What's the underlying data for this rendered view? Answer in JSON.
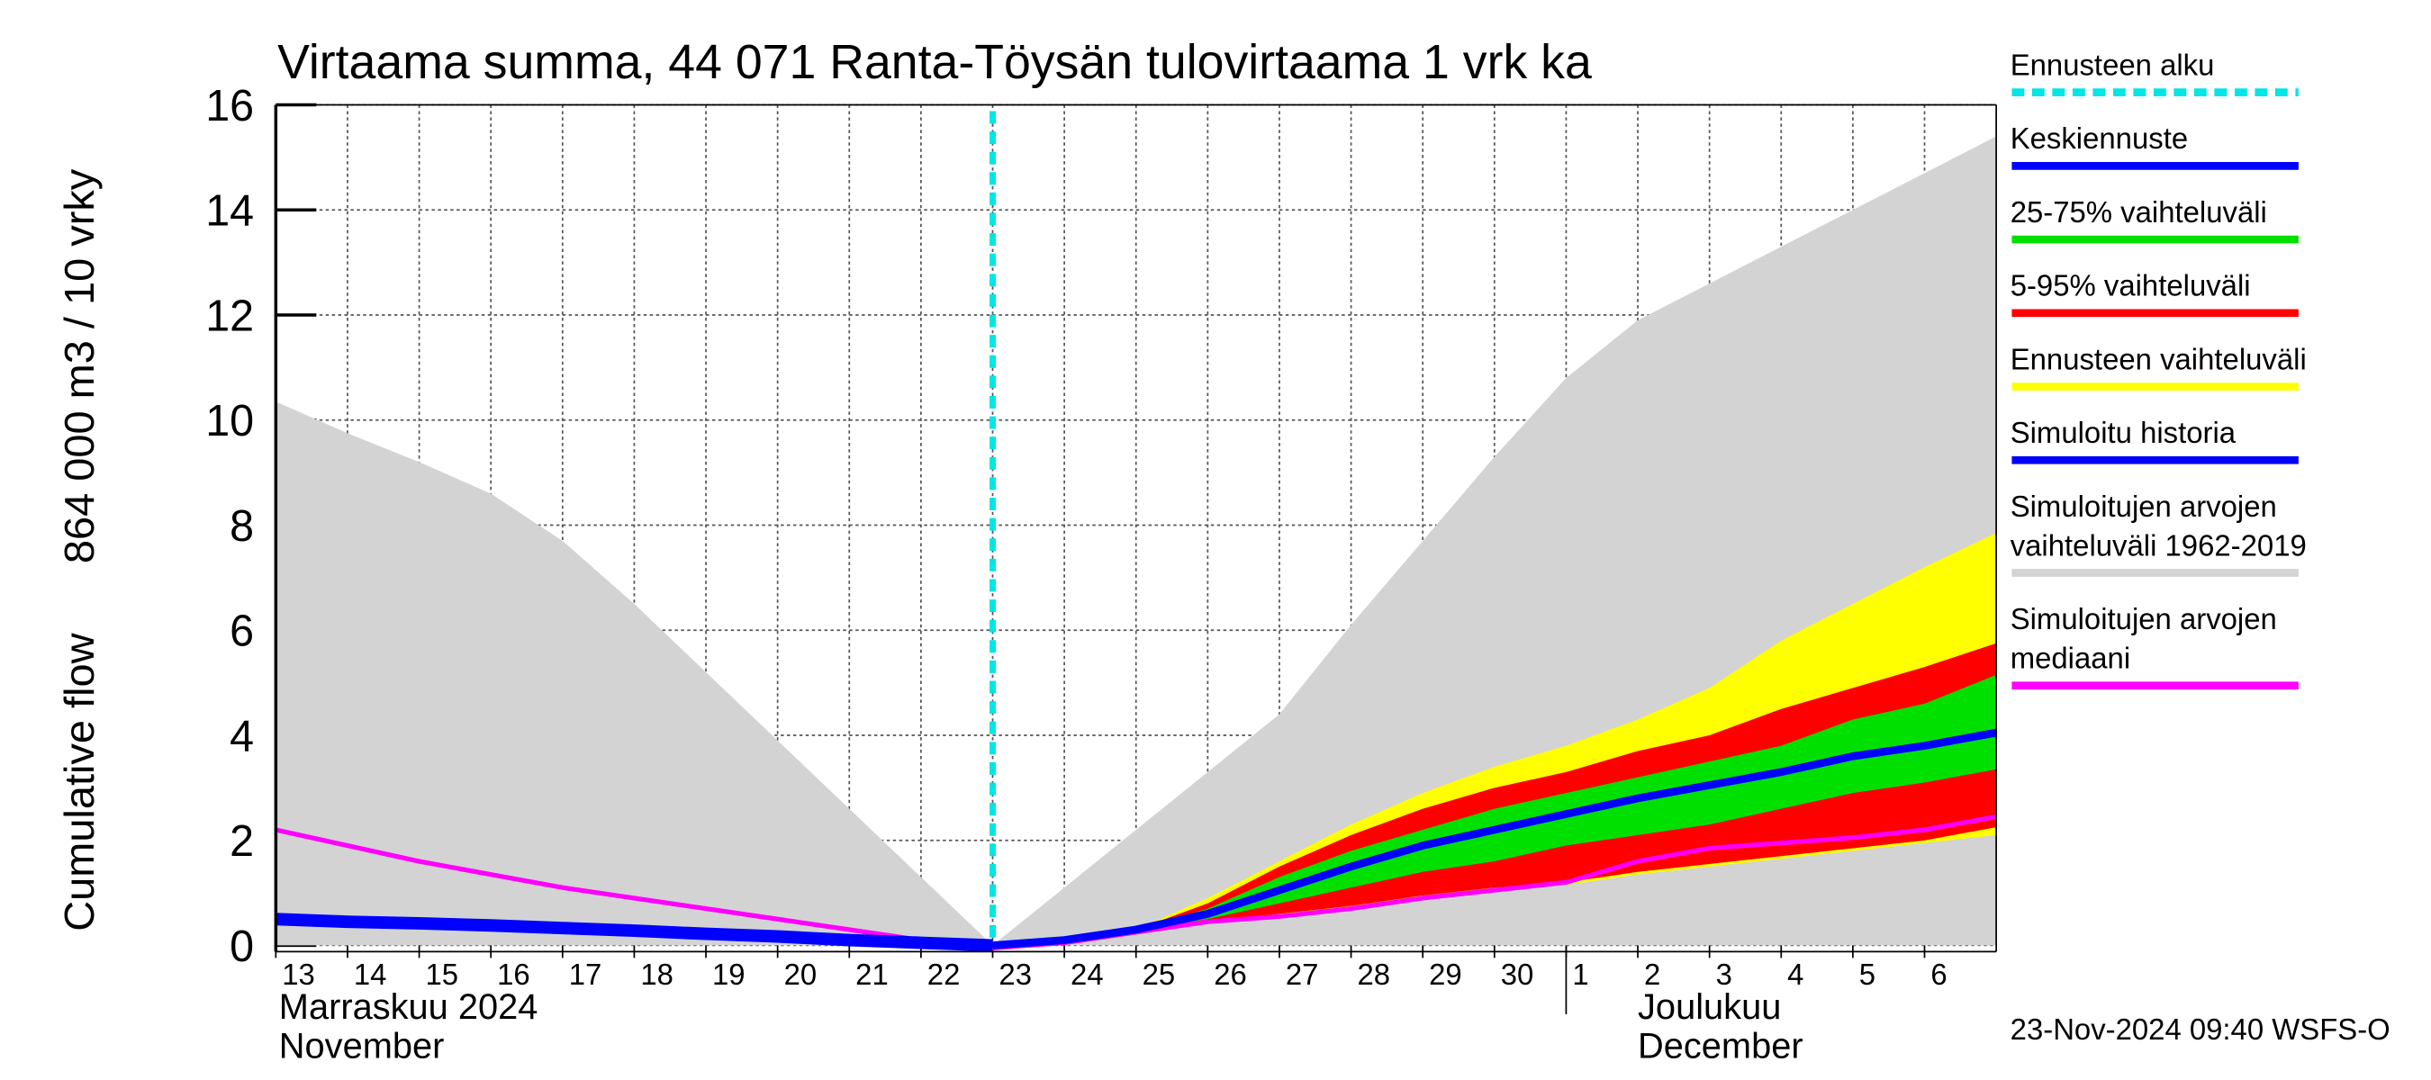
{
  "chart_data": {
    "type": "band-line",
    "title": "Virtaama summa, 44 071 Ranta-Töysän tulovirtaama 1 vrk ka",
    "ylabel": "Cumulative flow",
    "ylabel_unit": "864 000 m3 / 10 vrky",
    "footer": "23-Nov-2024 09:40 WSFS-O",
    "months": [
      {
        "label": "Marraskuu 2024",
        "label_en": "November"
      },
      {
        "label": "Joulukuu",
        "label_en": "December"
      }
    ],
    "forecast_start": {
      "label": "Ennusteen alku",
      "x": "2024-11-23",
      "color": "#00e5e5"
    },
    "x": [
      "2024-11-13",
      "2024-11-14",
      "2024-11-15",
      "2024-11-16",
      "2024-11-17",
      "2024-11-18",
      "2024-11-19",
      "2024-11-20",
      "2024-11-21",
      "2024-11-22",
      "2024-11-23",
      "2024-11-24",
      "2024-11-25",
      "2024-11-26",
      "2024-11-27",
      "2024-11-28",
      "2024-11-29",
      "2024-11-30",
      "2024-12-01",
      "2024-12-02",
      "2024-12-03",
      "2024-12-04",
      "2024-12-05",
      "2024-12-06",
      "2024-12-07"
    ],
    "xlim": [
      "2024-11-13",
      "2024-12-07"
    ],
    "xticks": [
      {
        "value": "2024-11-13",
        "label": "13"
      },
      {
        "value": "2024-11-14",
        "label": "14"
      },
      {
        "value": "2024-11-15",
        "label": "15"
      },
      {
        "value": "2024-11-16",
        "label": "16"
      },
      {
        "value": "2024-11-17",
        "label": "17"
      },
      {
        "value": "2024-11-18",
        "label": "18"
      },
      {
        "value": "2024-11-19",
        "label": "19"
      },
      {
        "value": "2024-11-20",
        "label": "20"
      },
      {
        "value": "2024-11-21",
        "label": "21"
      },
      {
        "value": "2024-11-22",
        "label": "22"
      },
      {
        "value": "2024-11-23",
        "label": "23"
      },
      {
        "value": "2024-11-24",
        "label": "24"
      },
      {
        "value": "2024-11-25",
        "label": "25"
      },
      {
        "value": "2024-11-26",
        "label": "26"
      },
      {
        "value": "2024-11-27",
        "label": "27"
      },
      {
        "value": "2024-11-28",
        "label": "28"
      },
      {
        "value": "2024-11-29",
        "label": "29"
      },
      {
        "value": "2024-11-30",
        "label": "30"
      },
      {
        "value": "2024-12-01",
        "label": "1"
      },
      {
        "value": "2024-12-02",
        "label": "2"
      },
      {
        "value": "2024-12-03",
        "label": "3"
      },
      {
        "value": "2024-12-04",
        "label": "4"
      },
      {
        "value": "2024-12-05",
        "label": "5"
      },
      {
        "value": "2024-12-06",
        "label": "6"
      }
    ],
    "ylim": [
      0,
      16
    ],
    "yticks": [
      0,
      2,
      4,
      6,
      8,
      10,
      12,
      14,
      16
    ],
    "grid": true,
    "series": [
      {
        "name": "Keskiennuste",
        "color": "#0000ff",
        "kind": "line",
        "width": 5,
        "values": [
          null,
          null,
          null,
          null,
          null,
          null,
          null,
          null,
          null,
          null,
          0,
          0.1,
          0.3,
          0.6,
          1.05,
          1.5,
          1.9,
          2.2,
          2.5,
          2.8,
          3.05,
          3.3,
          3.6,
          3.8,
          4.05
        ]
      },
      {
        "name": "25-75% vaihteluväli",
        "color": "#00e000",
        "kind": "band",
        "lower": [
          null,
          null,
          null,
          null,
          null,
          null,
          null,
          null,
          null,
          null,
          0,
          0.1,
          0.3,
          0.5,
          0.8,
          1.1,
          1.4,
          1.6,
          1.9,
          2.1,
          2.3,
          2.6,
          2.9,
          3.1,
          3.35
        ],
        "upper": [
          null,
          null,
          null,
          null,
          null,
          null,
          null,
          null,
          null,
          null,
          0,
          0.1,
          0.3,
          0.7,
          1.3,
          1.8,
          2.2,
          2.6,
          2.9,
          3.2,
          3.5,
          3.8,
          4.3,
          4.6,
          5.15
        ]
      },
      {
        "name": "5-95% vaihteluväli",
        "color": "#ff0000",
        "kind": "band",
        "lower": [
          null,
          null,
          null,
          null,
          null,
          null,
          null,
          null,
          null,
          null,
          0,
          0.1,
          0.25,
          0.45,
          0.6,
          0.75,
          0.95,
          1.1,
          1.2,
          1.4,
          1.55,
          1.7,
          1.85,
          2.0,
          2.25
        ],
        "upper": [
          null,
          null,
          null,
          null,
          null,
          null,
          null,
          null,
          null,
          null,
          0,
          0.1,
          0.3,
          0.8,
          1.5,
          2.1,
          2.6,
          3.0,
          3.3,
          3.7,
          4.0,
          4.5,
          4.9,
          5.3,
          5.75
        ]
      },
      {
        "name": "Ennusteen vaihteluväli",
        "color": "#ffff00",
        "kind": "band",
        "lower": [
          null,
          null,
          null,
          null,
          null,
          null,
          null,
          null,
          null,
          null,
          0,
          0.1,
          0.25,
          0.45,
          0.55,
          0.7,
          0.9,
          1.05,
          1.15,
          1.35,
          1.5,
          1.65,
          1.8,
          1.95,
          2.1
        ],
        "upper": [
          null,
          null,
          null,
          null,
          null,
          null,
          null,
          null,
          null,
          null,
          0,
          0.1,
          0.3,
          0.9,
          1.6,
          2.3,
          2.9,
          3.4,
          3.8,
          4.3,
          4.9,
          5.8,
          6.5,
          7.2,
          7.85
        ]
      },
      {
        "name": "Simuloitu historia",
        "color": "#0000ff",
        "kind": "line",
        "width": 8,
        "values": [
          0.5,
          0.45,
          0.42,
          0.38,
          0.33,
          0.28,
          0.22,
          0.17,
          0.1,
          0.05,
          0,
          null,
          null,
          null,
          null,
          null,
          null,
          null,
          null,
          null,
          null,
          null,
          null,
          null,
          null
        ]
      },
      {
        "name": "Simuloitujen arvojen\nvaihteluväli 1962-2019",
        "color": "#d3d3d3",
        "kind": "band",
        "lower": [
          0,
          0,
          0,
          0,
          0,
          0,
          0,
          0,
          0,
          0,
          0,
          0,
          0,
          0,
          0,
          0,
          0,
          0,
          0,
          0,
          0,
          0,
          0,
          0,
          0
        ],
        "upper": [
          10.35,
          9.75,
          9.2,
          8.6,
          7.7,
          6.5,
          5.2,
          3.9,
          2.6,
          1.3,
          0,
          1.1,
          2.2,
          3.3,
          4.4,
          6.1,
          7.7,
          9.3,
          10.8,
          11.9,
          12.6,
          13.3,
          14.0,
          14.7,
          15.4
        ]
      },
      {
        "name": "Simuloitujen arvojen\nmediaani",
        "color": "#ff00ff",
        "kind": "line",
        "width": 3,
        "values": [
          2.2,
          1.9,
          1.6,
          1.35,
          1.1,
          0.9,
          0.7,
          0.5,
          0.3,
          0.1,
          -0.05,
          0.05,
          0.25,
          0.45,
          0.55,
          0.7,
          0.9,
          1.05,
          1.2,
          1.6,
          1.85,
          1.95,
          2.05,
          2.2,
          2.45
        ]
      }
    ]
  }
}
